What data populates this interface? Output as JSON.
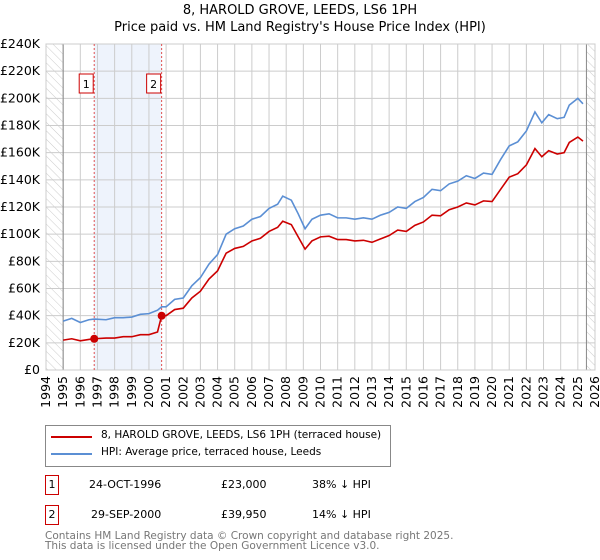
{
  "title": "8, HAROLD GROVE, LEEDS, LS6 1PH",
  "subtitle": "Price paid vs. HM Land Registry's House Price Index (HPI)",
  "chart_data": {
    "type": "line",
    "xlim": [
      1994,
      2026
    ],
    "ylim": [
      0,
      240000
    ],
    "x_ticks": [
      "1994",
      "1995",
      "1996",
      "1997",
      "1998",
      "1999",
      "2000",
      "2001",
      "2002",
      "2003",
      "2004",
      "2005",
      "2006",
      "2007",
      "2008",
      "2009",
      "2010",
      "2011",
      "2012",
      "2013",
      "2014",
      "2015",
      "2016",
      "2017",
      "2018",
      "2019",
      "2020",
      "2021",
      "2022",
      "2023",
      "2024",
      "2025",
      "2026"
    ],
    "y_ticks": [
      {
        "v": 0,
        "label": "£0"
      },
      {
        "v": 20000,
        "label": "£20K"
      },
      {
        "v": 40000,
        "label": "£40K"
      },
      {
        "v": 60000,
        "label": "£60K"
      },
      {
        "v": 80000,
        "label": "£80K"
      },
      {
        "v": 100000,
        "label": "£100K"
      },
      {
        "v": 120000,
        "label": "£120K"
      },
      {
        "v": 140000,
        "label": "£140K"
      },
      {
        "v": 160000,
        "label": "£160K"
      },
      {
        "v": 180000,
        "label": "£180K"
      },
      {
        "v": 200000,
        "label": "£200K"
      },
      {
        "v": 220000,
        "label": "£220K"
      },
      {
        "v": 240000,
        "label": "£240K"
      }
    ],
    "grid": true,
    "x": [
      1995,
      1995.5,
      1996,
      1996.5,
      1996.81,
      1997.5,
      1998,
      1998.5,
      1999,
      1999.5,
      2000,
      2000.5,
      2000.74,
      2001,
      2001.5,
      2002,
      2002.5,
      2003,
      2003.5,
      2004,
      2004.5,
      2005,
      2005.5,
      2006,
      2006.5,
      2007,
      2007.5,
      2007.8,
      2008.3,
      2008.7,
      2009.1,
      2009.5,
      2010,
      2010.5,
      2011,
      2011.5,
      2012,
      2012.5,
      2013,
      2013.5,
      2014,
      2014.5,
      2015,
      2015.5,
      2016,
      2016.5,
      2017,
      2017.5,
      2018,
      2018.5,
      2019,
      2019.5,
      2020,
      2020.5,
      2021,
      2021.5,
      2022,
      2022.5,
      2022.9,
      2023.3,
      2023.8,
      2024.2,
      2024.5,
      2025,
      2025.3
    ],
    "series": [
      {
        "name": "8, HAROLD GROVE, LEEDS, LS6 1PH (terraced house)",
        "color": "#cc0000",
        "values": [
          22000,
          23000,
          21500,
          22500,
          23000,
          23500,
          23500,
          24500,
          24500,
          26000,
          26000,
          28000,
          39950,
          40000,
          44500,
          45500,
          53000,
          58000,
          67000,
          73000,
          86000,
          89500,
          91000,
          95000,
          97000,
          102000,
          105000,
          109500,
          107000,
          98000,
          89000,
          95000,
          98000,
          98500,
          96000,
          96000,
          95000,
          95500,
          94000,
          96500,
          99000,
          103000,
          102000,
          106500,
          109000,
          114000,
          113500,
          118000,
          120000,
          123000,
          121500,
          124500,
          124000,
          133000,
          142000,
          144500,
          151000,
          163000,
          157000,
          161500,
          159000,
          160000,
          167500,
          171500,
          168500
        ]
      },
      {
        "name": "HPI: Average price, terraced house, Leeds",
        "color": "#5b8fd4",
        "values": [
          36000,
          38000,
          35000,
          37000,
          37500,
          37000,
          38500,
          38500,
          39000,
          41000,
          41500,
          44000,
          46500,
          46500,
          52000,
          53000,
          62000,
          68000,
          78000,
          85000,
          100000,
          104000,
          106000,
          111000,
          113000,
          119000,
          122000,
          128000,
          125000,
          115000,
          104000,
          111000,
          114000,
          115000,
          112000,
          112000,
          111000,
          112000,
          111000,
          114000,
          116000,
          120000,
          119000,
          124000,
          127000,
          133000,
          132000,
          137000,
          139000,
          143000,
          141000,
          145000,
          144000,
          155000,
          165000,
          168000,
          176000,
          190000,
          182000,
          188000,
          185000,
          186000,
          195000,
          200000,
          196000
        ]
      }
    ],
    "sales": [
      {
        "n": "1",
        "x": 1996.81,
        "y": 23000
      },
      {
        "n": "2",
        "x": 2000.74,
        "y": 39950
      }
    ],
    "legend_placement": "below"
  },
  "legend": [
    {
      "label": "8, HAROLD GROVE, LEEDS, LS6 1PH (terraced house)",
      "color": "#cc0000"
    },
    {
      "label": "HPI: Average price, terraced house, Leeds",
      "color": "#5b8fd4"
    }
  ],
  "transactions": [
    {
      "n": "1",
      "date": "24-OCT-1996",
      "price": "£23,000",
      "delta": "38% ↓ HPI"
    },
    {
      "n": "2",
      "date": "29-SEP-2000",
      "price": "£39,950",
      "delta": "14% ↓ HPI"
    }
  ],
  "footer": [
    "Contains HM Land Registry data © Crown copyright and database right 2025.",
    "This data is licensed under the Open Government Licence v3.0."
  ]
}
